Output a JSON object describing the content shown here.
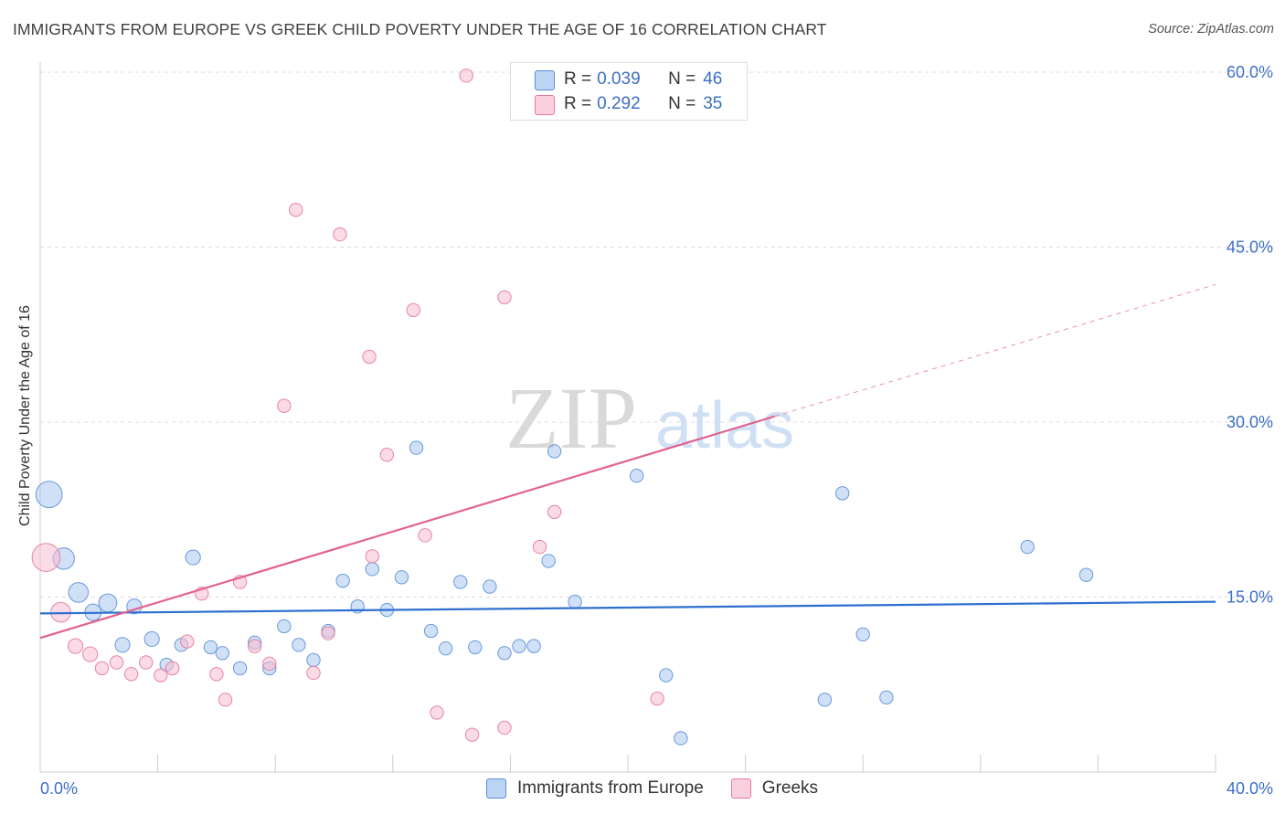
{
  "title": "IMMIGRANTS FROM EUROPE VS GREEK CHILD POVERTY UNDER THE AGE OF 16 CORRELATION CHART",
  "source": "Source: ZipAtlas.com",
  "watermark": {
    "zip": "ZIP",
    "atlas": "atlas"
  },
  "colors": {
    "blue_fill": "#a9c8f0",
    "blue_stroke": "#5b8fd6",
    "blue_line": "#2f6fcf",
    "pink_fill": "#f7bdd0",
    "pink_stroke": "#e47a9c",
    "pink_line": "#e2628e",
    "tick_text": "#3b6fc4",
    "grid": "#dddddd"
  },
  "legend": {
    "rows": [
      {
        "r_label": "R =",
        "r_value": "0.039",
        "n_label": "N =",
        "n_value": "46",
        "series": "blue"
      },
      {
        "r_label": "R =",
        "r_value": "0.292",
        "n_label": "N =",
        "n_value": "35",
        "series": "pink"
      }
    ]
  },
  "bottom_legend": [
    "Immigrants from Europe",
    "Greeks"
  ],
  "chart_data": {
    "type": "scatter",
    "title": "IMMIGRANTS FROM EUROPE VS GREEK CHILD POVERTY UNDER THE AGE OF 16 CORRELATION CHART",
    "xlabel": "",
    "ylabel": "Child Poverty Under the Age of 16",
    "xlim": [
      0,
      40
    ],
    "ylim": [
      0,
      60
    ],
    "x_tick_labels": [
      "0.0%",
      "40.0%"
    ],
    "y_tick_labels": [
      "15.0%",
      "30.0%",
      "45.0%",
      "60.0%"
    ],
    "y_ticks": [
      15,
      30,
      45,
      60
    ],
    "grid": true,
    "legend_position": "top-center",
    "series": [
      {
        "name": "Immigrants from Europe",
        "color": "blue",
        "trend": {
          "x": [
            0,
            40
          ],
          "y": [
            13.6,
            14.6
          ],
          "dashed_beyond": null
        },
        "points": [
          [
            0.3,
            23.8,
            1.6
          ],
          [
            0.8,
            18.3,
            1.3
          ],
          [
            1.3,
            15.4,
            1.2
          ],
          [
            1.8,
            13.7,
            1.0
          ],
          [
            2.3,
            14.5,
            1.1
          ],
          [
            2.8,
            10.9,
            0.9
          ],
          [
            3.2,
            14.2,
            0.9
          ],
          [
            3.8,
            11.4,
            0.9
          ],
          [
            4.3,
            9.2,
            0.8
          ],
          [
            4.8,
            10.9,
            0.8
          ],
          [
            5.2,
            18.4,
            0.9
          ],
          [
            5.8,
            10.7,
            0.8
          ],
          [
            6.2,
            10.2,
            0.8
          ],
          [
            6.8,
            8.9,
            0.8
          ],
          [
            7.3,
            11.1,
            0.8
          ],
          [
            7.8,
            8.9,
            0.8
          ],
          [
            8.3,
            12.5,
            0.8
          ],
          [
            8.8,
            10.9,
            0.8
          ],
          [
            9.3,
            9.6,
            0.8
          ],
          [
            9.8,
            12.1,
            0.8
          ],
          [
            10.3,
            16.4,
            0.8
          ],
          [
            10.8,
            14.2,
            0.8
          ],
          [
            11.3,
            17.4,
            0.8
          ],
          [
            11.8,
            13.9,
            0.8
          ],
          [
            12.3,
            16.7,
            0.8
          ],
          [
            12.8,
            27.8,
            0.8
          ],
          [
            13.3,
            12.1,
            0.8
          ],
          [
            13.8,
            10.6,
            0.8
          ],
          [
            14.3,
            16.3,
            0.8
          ],
          [
            14.8,
            10.7,
            0.8
          ],
          [
            15.3,
            15.9,
            0.8
          ],
          [
            15.8,
            10.2,
            0.8
          ],
          [
            16.3,
            10.8,
            0.8
          ],
          [
            16.8,
            10.8,
            0.8
          ],
          [
            17.3,
            18.1,
            0.8
          ],
          [
            17.5,
            27.5,
            0.8
          ],
          [
            18.2,
            14.6,
            0.8
          ],
          [
            20.3,
            25.4,
            0.8
          ],
          [
            21.3,
            8.3,
            0.8
          ],
          [
            21.8,
            2.9,
            0.8
          ],
          [
            26.7,
            6.2,
            0.8
          ],
          [
            27.3,
            23.9,
            0.8
          ],
          [
            28.0,
            11.8,
            0.8
          ],
          [
            28.8,
            6.4,
            0.8
          ],
          [
            33.6,
            19.3,
            0.8
          ],
          [
            35.6,
            16.9,
            0.8
          ]
        ]
      },
      {
        "name": "Greeks",
        "color": "pink",
        "trend": {
          "x": [
            0,
            25
          ],
          "y": [
            11.5,
            30.5
          ],
          "dashed_to": [
            40,
            41.8
          ]
        },
        "points": [
          [
            0.2,
            18.4,
            1.7
          ],
          [
            0.7,
            13.7,
            1.2
          ],
          [
            1.2,
            10.8,
            0.9
          ],
          [
            1.7,
            10.1,
            0.9
          ],
          [
            2.1,
            8.9,
            0.8
          ],
          [
            2.6,
            9.4,
            0.8
          ],
          [
            3.1,
            8.4,
            0.8
          ],
          [
            3.6,
            9.4,
            0.8
          ],
          [
            4.1,
            8.3,
            0.8
          ],
          [
            4.5,
            8.9,
            0.8
          ],
          [
            5.0,
            11.2,
            0.8
          ],
          [
            5.5,
            15.3,
            0.8
          ],
          [
            6.0,
            8.4,
            0.8
          ],
          [
            6.3,
            6.2,
            0.8
          ],
          [
            6.8,
            16.3,
            0.8
          ],
          [
            7.3,
            10.8,
            0.8
          ],
          [
            7.8,
            9.3,
            0.8
          ],
          [
            8.3,
            31.4,
            0.8
          ],
          [
            8.7,
            48.2,
            0.8
          ],
          [
            9.3,
            8.5,
            0.8
          ],
          [
            9.8,
            11.9,
            0.8
          ],
          [
            10.2,
            46.1,
            0.8
          ],
          [
            11.2,
            35.6,
            0.8
          ],
          [
            11.3,
            18.5,
            0.8
          ],
          [
            11.8,
            27.2,
            0.8
          ],
          [
            12.7,
            39.6,
            0.8
          ],
          [
            13.1,
            20.3,
            0.8
          ],
          [
            13.5,
            5.1,
            0.8
          ],
          [
            14.5,
            59.7,
            0.8
          ],
          [
            14.7,
            3.2,
            0.8
          ],
          [
            15.8,
            40.7,
            0.8
          ],
          [
            15.8,
            3.8,
            0.8
          ],
          [
            17.0,
            19.3,
            0.8
          ],
          [
            17.5,
            22.3,
            0.8
          ],
          [
            21.0,
            6.3,
            0.8
          ]
        ]
      }
    ]
  }
}
